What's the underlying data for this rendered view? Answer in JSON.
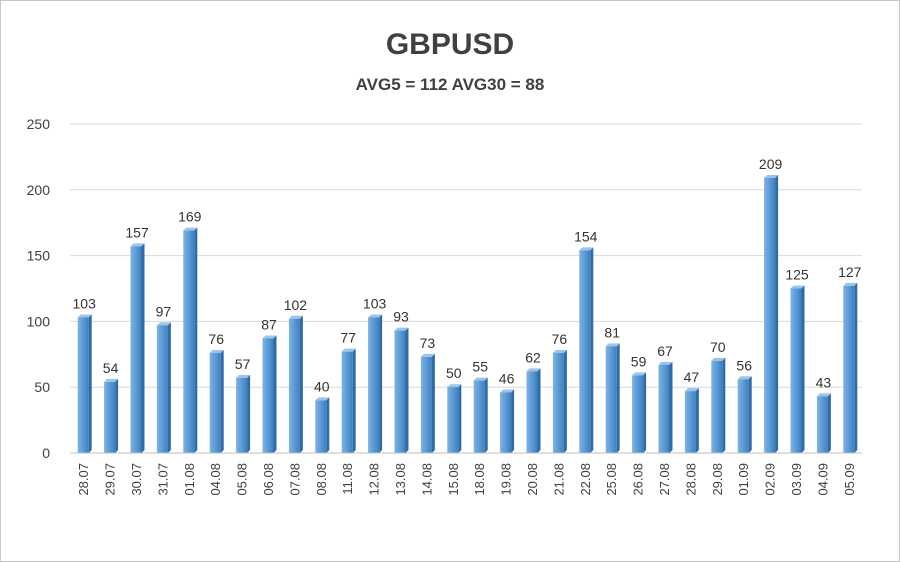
{
  "chart_data": {
    "type": "bar",
    "title": "GBPUSD",
    "subtitle": "AVG5 = 112 AVG30 = 88",
    "xlabel": "",
    "ylabel": "",
    "ylim": [
      0,
      250
    ],
    "yticks": [
      0,
      50,
      100,
      150,
      200,
      250
    ],
    "grid": true,
    "categories": [
      "28.07",
      "29.07",
      "30.07",
      "31.07",
      "01.08",
      "04.08",
      "05.08",
      "06.08",
      "07.08",
      "08.08",
      "11.08",
      "12.08",
      "13.08",
      "14.08",
      "15.08",
      "18.08",
      "19.08",
      "20.08",
      "21.08",
      "22.08",
      "25.08",
      "26.08",
      "27.08",
      "28.08",
      "29.08",
      "01.09",
      "02.09",
      "03.09",
      "04.09",
      "05.09"
    ],
    "values": [
      103,
      54,
      157,
      97,
      169,
      76,
      57,
      87,
      102,
      40,
      77,
      103,
      93,
      73,
      50,
      55,
      46,
      62,
      76,
      154,
      81,
      59,
      67,
      47,
      70,
      56,
      209,
      125,
      43,
      127
    ],
    "bar_color": "#5b9bd5"
  }
}
